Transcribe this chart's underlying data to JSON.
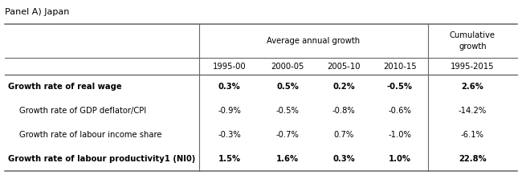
{
  "panel_label": "Panel A) Japan",
  "col_header_group": "Average annual growth",
  "col_header_cumulative": "Cumulative\ngrowth",
  "subheaders": [
    "1995-00",
    "2000-05",
    "2005-10",
    "2010-15",
    "1995-2015"
  ],
  "rows": [
    {
      "label": "Growth rate of real wage",
      "bold": true,
      "indent": false,
      "values": [
        "0.3%",
        "0.5%",
        "0.2%",
        "-0.5%",
        "2.6%"
      ],
      "last_bold": true
    },
    {
      "label": "Growth rate of GDP deflator/CPI",
      "bold": false,
      "indent": true,
      "values": [
        "-0.9%",
        "-0.5%",
        "-0.8%",
        "-0.6%",
        "-14.2%"
      ],
      "last_bold": false
    },
    {
      "label": "Growth rate of labour income share",
      "bold": false,
      "indent": true,
      "values": [
        "-0.3%",
        "-0.7%",
        "0.7%",
        "-1.0%",
        "-6.1%"
      ],
      "last_bold": false
    },
    {
      "label": "Growth rate of labour productivity1 (NI0)",
      "bold": true,
      "indent": false,
      "values": [
        "1.5%",
        "1.6%",
        "0.3%",
        "1.0%",
        "22.8%"
      ],
      "last_bold": true
    }
  ],
  "background_color": "#ffffff",
  "line_color": "#666666",
  "text_color": "#000000",
  "font_size": 7.2,
  "header_font_size": 7.2
}
